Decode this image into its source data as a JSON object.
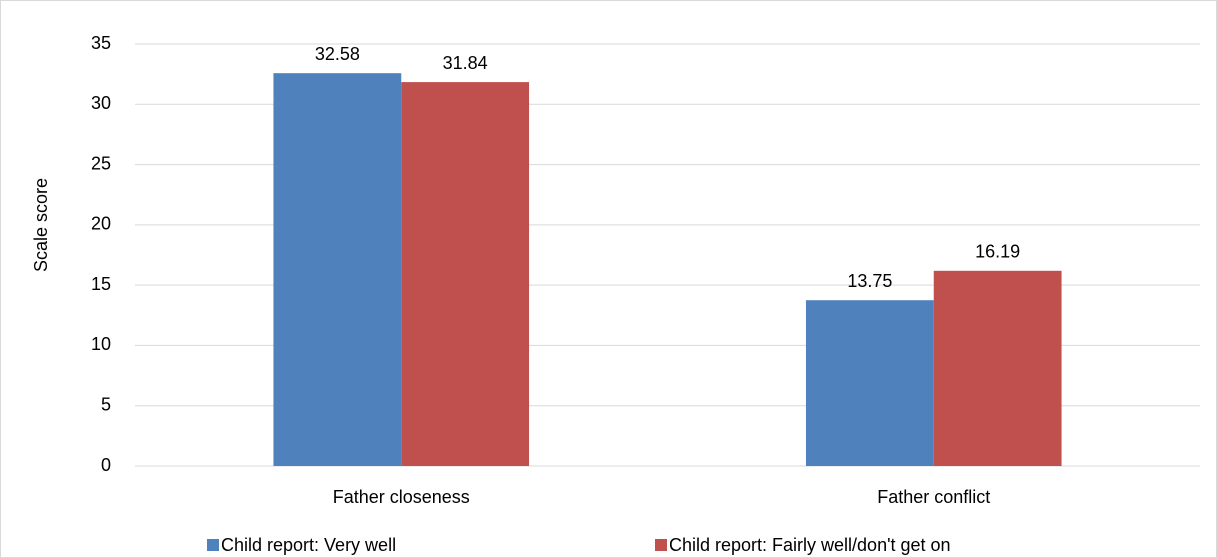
{
  "chart_data": {
    "type": "bar",
    "y_label": "Scale score",
    "categories": [
      "Father closeness",
      "Father conflict"
    ],
    "series": [
      {
        "name": "Child report: Very well",
        "color": "#4f81bd",
        "values": [
          32.58,
          13.75
        ]
      },
      {
        "name": "Child report: Fairly well/don't get on",
        "color": "#c0504d",
        "values": [
          31.84,
          16.19
        ]
      }
    ],
    "ylim": [
      0,
      35
    ],
    "yticks": [
      0,
      5,
      10,
      15,
      20,
      25,
      30,
      35
    ],
    "grid": true,
    "legend": "bottom"
  }
}
